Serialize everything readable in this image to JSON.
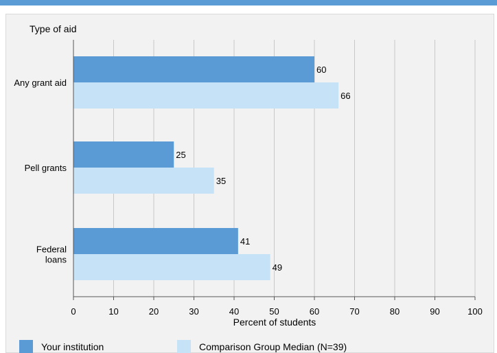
{
  "colors": {
    "top_bar": "#5b9bd5",
    "panel_bg": "#f2f2f2",
    "series_primary": "#5b9bd5",
    "series_secondary": "#c6e2f7"
  },
  "chart_data": {
    "type": "bar",
    "orientation": "horizontal",
    "title": "",
    "category_axis_title": "Type of aid",
    "xlabel": "Percent of students",
    "xlim": [
      0,
      100
    ],
    "xticks": [
      0,
      10,
      20,
      30,
      40,
      50,
      60,
      70,
      80,
      90,
      100
    ],
    "grid": true,
    "categories": [
      "Any grant aid",
      "Pell grants",
      "Federal\nloans"
    ],
    "series": [
      {
        "name": "Your institution",
        "values": [
          60,
          25,
          41
        ],
        "color": "#5b9bd5"
      },
      {
        "name": "Comparison Group Median (N=39)",
        "values": [
          66,
          35,
          49
        ],
        "color": "#c6e2f7"
      }
    ],
    "legend_position": "bottom-left"
  }
}
